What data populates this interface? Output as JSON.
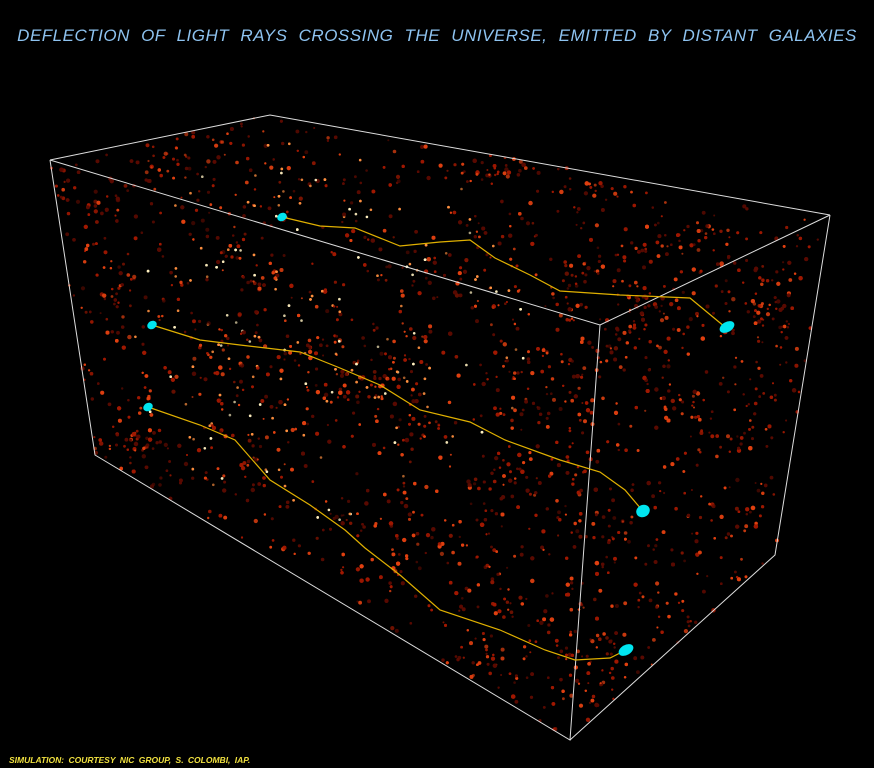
{
  "title": "DEFLECTION  OF  LIGHT RAYS  CROSSING  THE UNIVERSE, EMITTED BY  DISTANT GALAXIES",
  "credit": "SIMULATION: COURTESY NIC GROUP,   S.  COLOMBI,  IAP.",
  "colors": {
    "title": "#8ec3f0",
    "credit": "#f0e040",
    "ray": "#e0b000",
    "galaxy": "#00e5f0",
    "box": "#ffffff",
    "matter": [
      "#5a0a00",
      "#a01800",
      "#e04010",
      "#ff9040",
      "#fff0c0"
    ]
  },
  "rays_count_shown": 3
}
